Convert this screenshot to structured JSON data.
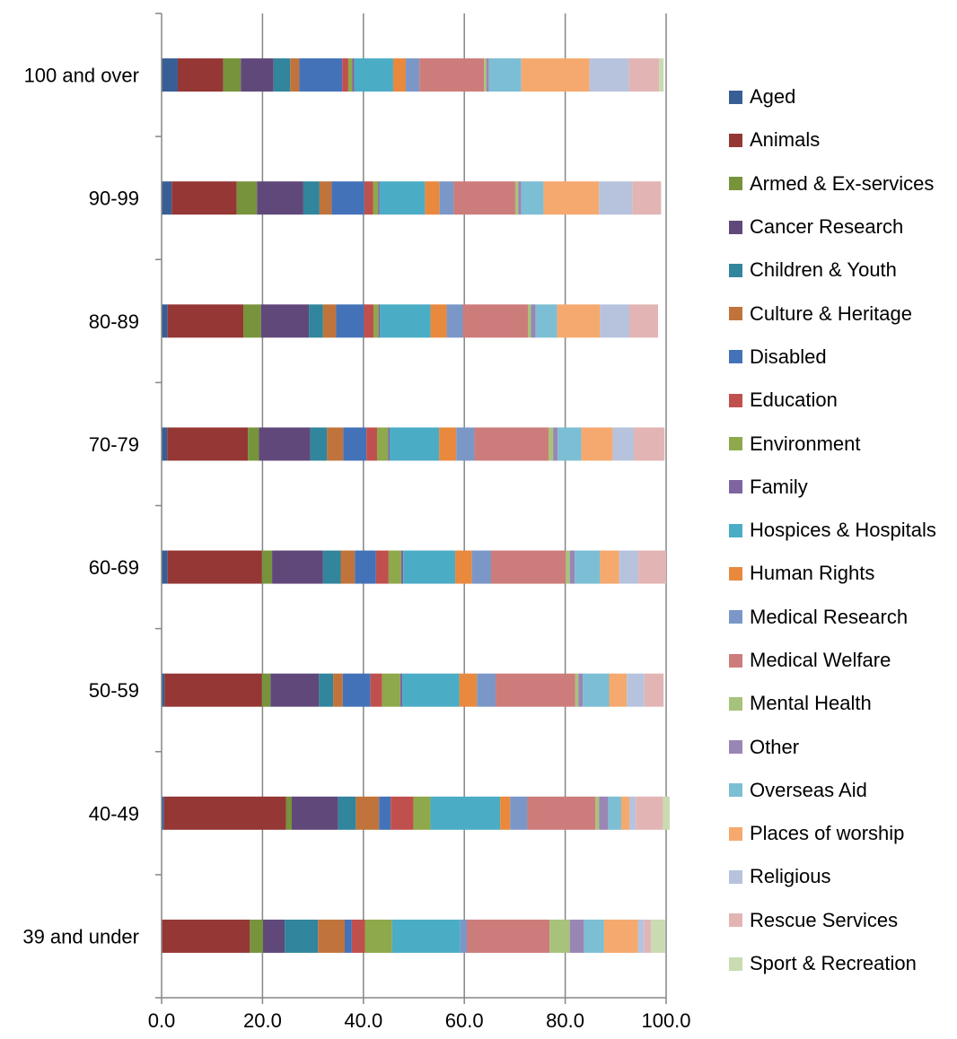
{
  "chart_data": {
    "type": "bar",
    "orientation": "horizontal",
    "stacked": true,
    "title": "",
    "xlabel": "",
    "ylabel": "",
    "xlim": [
      0,
      100
    ],
    "x_ticks": [
      "0.0",
      "20.0",
      "40.0",
      "60.0",
      "80.0",
      "100.0"
    ],
    "grid": "vertical",
    "legend_position": "right",
    "categories": [
      "100 and over",
      "90-99",
      "80-89",
      "70-79",
      "60-69",
      "50-59",
      "40-49",
      "39 and under"
    ],
    "series": [
      {
        "name": "Aged",
        "color": "#375f96",
        "values": [
          3.2,
          2.0,
          1.2,
          1.1,
          1.2,
          0.6,
          0.5,
          0.0
        ]
      },
      {
        "name": "Animals",
        "color": "#953735",
        "values": [
          9.0,
          12.9,
          15.0,
          16.0,
          18.7,
          19.3,
          24.2,
          17.5
        ]
      },
      {
        "name": "Armed & Ex-services",
        "color": "#77933c",
        "values": [
          3.5,
          4.0,
          3.5,
          2.2,
          2.0,
          1.7,
          1.1,
          2.6
        ]
      },
      {
        "name": "Cancer Research",
        "color": "#60497a",
        "values": [
          6.5,
          9.2,
          9.5,
          10.2,
          10.1,
          9.6,
          9.2,
          4.3
        ]
      },
      {
        "name": "Children & Youth",
        "color": "#31859c",
        "values": [
          3.3,
          3.2,
          2.8,
          3.3,
          3.5,
          2.8,
          3.5,
          6.6
        ]
      },
      {
        "name": "Culture & Heritage",
        "color": "#c0743c",
        "values": [
          1.8,
          2.4,
          2.6,
          3.2,
          2.8,
          1.9,
          4.6,
          5.3
        ]
      },
      {
        "name": "Disabled",
        "color": "#4472b8",
        "values": [
          8.5,
          6.5,
          5.5,
          4.6,
          4.2,
          5.5,
          2.3,
          1.4
        ]
      },
      {
        "name": "Education",
        "color": "#c0504d",
        "values": [
          1.2,
          1.7,
          1.9,
          2.1,
          2.5,
          2.3,
          4.5,
          2.6
        ]
      },
      {
        "name": "Environment",
        "color": "#8ea84c",
        "values": [
          0.8,
          1.0,
          1.0,
          2.2,
          2.5,
          3.6,
          3.4,
          5.4
        ]
      },
      {
        "name": "Family",
        "color": "#7f64a0",
        "values": [
          0.4,
          0.3,
          0.3,
          0.3,
          0.4,
          0.4,
          0.0,
          0.0
        ]
      },
      {
        "name": "Hospices & Hospitals",
        "color": "#4bacc6",
        "values": [
          7.7,
          9.0,
          10.0,
          9.8,
          10.3,
          11.3,
          13.8,
          13.5
        ]
      },
      {
        "name": "Human Rights",
        "color": "#e8893e",
        "values": [
          2.5,
          2.9,
          3.2,
          3.4,
          3.3,
          3.5,
          2.0,
          0.0
        ]
      },
      {
        "name": "Medical Research",
        "color": "#7b97c7",
        "values": [
          2.7,
          2.8,
          3.2,
          3.6,
          3.8,
          3.7,
          3.4,
          1.3
        ]
      },
      {
        "name": "Medical Welfare",
        "color": "#cc7c7a",
        "values": [
          12.8,
          12.2,
          12.9,
          14.7,
          14.8,
          15.8,
          13.5,
          16.4
        ]
      },
      {
        "name": "Mental Health",
        "color": "#a7c27a",
        "values": [
          0.5,
          0.6,
          0.6,
          0.9,
          0.8,
          0.6,
          0.7,
          4.0
        ]
      },
      {
        "name": "Other",
        "color": "#9a86b5",
        "values": [
          0.5,
          0.6,
          0.9,
          0.9,
          1.0,
          0.9,
          1.8,
          2.8
        ]
      },
      {
        "name": "Overseas Aid",
        "color": "#7cbed3",
        "values": [
          6.4,
          4.4,
          4.3,
          4.7,
          5.0,
          5.2,
          2.6,
          4.0
        ]
      },
      {
        "name": "Places of worship",
        "color": "#f5a96e",
        "values": [
          13.5,
          11.0,
          8.5,
          6.2,
          3.8,
          3.5,
          1.6,
          6.7
        ]
      },
      {
        "name": "Religious",
        "color": "#b7c3dd",
        "values": [
          7.8,
          6.6,
          5.8,
          4.2,
          3.8,
          3.5,
          1.3,
          1.3
        ]
      },
      {
        "name": "Rescue Services",
        "color": "#e2b5b4",
        "values": [
          6.0,
          5.7,
          5.7,
          6.1,
          5.5,
          3.8,
          5.4,
          1.3
        ]
      },
      {
        "name": "Sport & Recreation",
        "color": "#c9dbb0",
        "values": [
          0.9,
          0.0,
          0.0,
          0.0,
          0.0,
          0.0,
          1.3,
          2.8
        ]
      }
    ]
  }
}
